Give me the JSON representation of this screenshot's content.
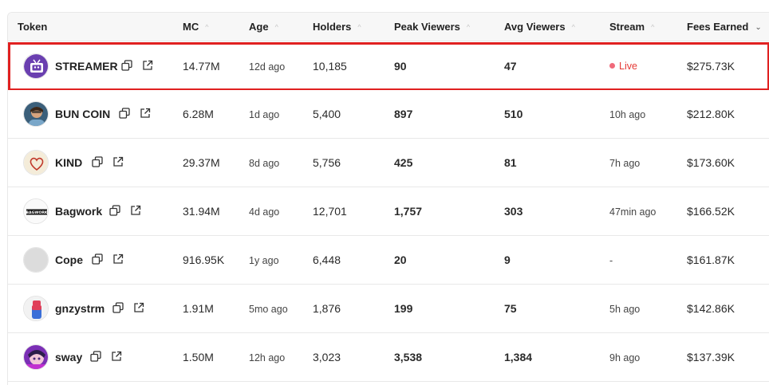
{
  "headers": {
    "token": "Token",
    "mc": "MC",
    "age": "Age",
    "holders": "Holders",
    "peak_viewers": "Peak Viewers",
    "avg_viewers": "Avg Viewers",
    "stream": "Stream",
    "fees_earned": "Fees Earned"
  },
  "sort_icons": {
    "inactive": "^",
    "active": "⌄"
  },
  "rows": [
    {
      "name": "STREAMER",
      "mc": "14.77M",
      "age": "12d ago",
      "holders": "10,185",
      "peak": "90",
      "avg": "47",
      "stream": "Live",
      "fees": "$275.73K",
      "avatar_icon": "tv-icon"
    },
    {
      "name": "BUN COIN",
      "mc": "6.28M",
      "age": "1d ago",
      "holders": "5,400",
      "peak": "897",
      "avg": "510",
      "stream": "10h ago",
      "fees": "$212.80K",
      "avatar_icon": "person-photo-icon"
    },
    {
      "name": "KIND",
      "mc": "29.37M",
      "age": "8d ago",
      "holders": "5,756",
      "peak": "425",
      "avg": "81",
      "stream": "7h ago",
      "fees": "$173.60K",
      "avatar_icon": "heart-icon"
    },
    {
      "name": "Bagwork",
      "mc": "31.94M",
      "age": "4d ago",
      "holders": "12,701",
      "peak": "1,757",
      "avg": "303",
      "stream": "47min ago",
      "fees": "$166.52K",
      "avatar_icon": "bagwork-logo",
      "avatar_text": "BAGWORK"
    },
    {
      "name": "Cope",
      "mc": "916.95K",
      "age": "1y ago",
      "holders": "6,448",
      "peak": "20",
      "avg": "9",
      "stream": "-",
      "fees": "$161.87K",
      "avatar_icon": "placeholder-avatar"
    },
    {
      "name": "gnzystrm",
      "mc": "1.91M",
      "age": "5mo ago",
      "holders": "1,876",
      "peak": "199",
      "avg": "75",
      "stream": "5h ago",
      "fees": "$142.86K",
      "avatar_icon": "vape-icon"
    },
    {
      "name": "sway",
      "mc": "1.50M",
      "age": "12h ago",
      "holders": "3,023",
      "peak": "3,538",
      "avg": "1,384",
      "stream": "9h ago",
      "fees": "$137.39K",
      "avatar_icon": "anime-avatar"
    }
  ],
  "colors": {
    "highlight": "#e02020",
    "live": "#e53935"
  }
}
